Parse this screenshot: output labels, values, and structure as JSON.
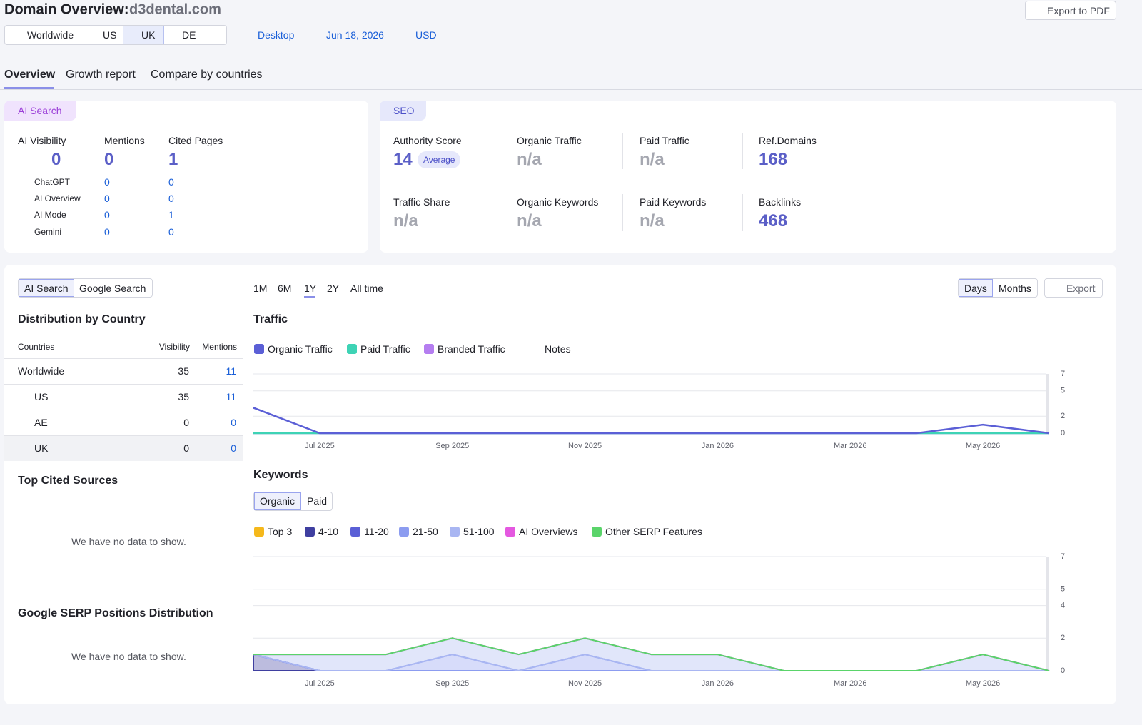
{
  "header": {
    "title": "Domain Overview:",
    "domain": "d3dental.com",
    "export": "Export to PDF"
  },
  "filters": {
    "locations": [
      "Worldwide",
      "US",
      "UK",
      "DE"
    ],
    "device": "Desktop",
    "date": "Jun 18, 2026",
    "currency": "USD"
  },
  "tabs": [
    "Overview",
    "Growth report",
    "Compare by countries"
  ],
  "ai_search": {
    "label": "AI Search",
    "metrics": [
      {
        "name": "AI Visibility",
        "value": 0
      },
      {
        "name": "Mentions",
        "value": 0
      },
      {
        "name": "Cited Pages",
        "value": 1
      }
    ],
    "platforms": [
      {
        "name": "ChatGPT",
        "mentions": 0,
        "cited_pages": 0
      },
      {
        "name": "AI Overview",
        "mentions": 0,
        "cited_pages": 0
      },
      {
        "name": "AI Mode",
        "mentions": 0,
        "cited_pages": 1
      },
      {
        "name": "Gemini",
        "mentions": 0,
        "cited_pages": 0
      }
    ]
  },
  "seo": {
    "label": "SEO",
    "metrics": [
      {
        "name": "Authority Score",
        "value": 14,
        "badge": "Average"
      },
      {
        "name": "Organic Traffic",
        "value": "n/a"
      },
      {
        "name": "Paid Traffic",
        "value": "n/a"
      },
      {
        "name": "Ref.Domains",
        "value": 168
      },
      {
        "name": "Traffic Share",
        "value": "n/a"
      },
      {
        "name": "Organic Keywords",
        "value": "n/a"
      },
      {
        "name": "Paid Keywords",
        "value": "n/a"
      },
      {
        "name": "Backlinks",
        "value": 468
      }
    ]
  },
  "panel": {
    "source_toggle": [
      "AI Search",
      "Google Search"
    ],
    "distribution": {
      "title": "Distribution by Country",
      "columns": [
        "Countries",
        "Visibility",
        "Mentions"
      ],
      "rows": [
        [
          "Worldwide",
          35,
          11
        ],
        [
          "US",
          35,
          11
        ],
        [
          "AE",
          0,
          0
        ],
        [
          "UK",
          0,
          0
        ]
      ]
    },
    "top_cited": {
      "title": "Top Cited Sources",
      "empty": "We have no data to show."
    },
    "serp": {
      "title": "Google SERP Positions Distribution",
      "empty": "We have no data to show."
    },
    "ranges": [
      "1M",
      "6M",
      "1Y",
      "2Y",
      "All time"
    ],
    "granularity": [
      "Days",
      "Months"
    ],
    "export": "Export"
  },
  "traffic": {
    "type": "line",
    "title": "Traffic",
    "notes": "Notes",
    "categories": [
      null,
      "Jul 2025",
      null,
      "Sep 2025",
      null,
      "Nov 2025",
      null,
      "Jan 2026",
      null,
      "Mar 2026",
      null,
      "May 2026",
      null
    ],
    "series": [
      {
        "name": "Organic Traffic",
        "color": "#5b5fd6",
        "values": [
          3,
          0,
          0,
          0,
          0,
          0,
          0,
          0,
          0,
          0,
          0,
          1,
          0
        ]
      },
      {
        "name": "Paid Traffic",
        "color": "#3ed3b5",
        "values": [
          0,
          0,
          0,
          0,
          0,
          0,
          0,
          0,
          0,
          0,
          0,
          0,
          0
        ]
      },
      {
        "name": "Branded Traffic",
        "color": "#b57ef0",
        "values": [
          0,
          0,
          0,
          0,
          0,
          0,
          0,
          0,
          0,
          0,
          0,
          0,
          0
        ]
      }
    ],
    "ylim": [
      0,
      7
    ],
    "yticks": [
      0,
      2,
      5,
      7
    ],
    "grid": true
  },
  "keywords": {
    "type": "area",
    "title": "Keywords",
    "modes": [
      "Organic",
      "Paid"
    ],
    "categories": [
      null,
      "Jul 2025",
      null,
      "Sep 2025",
      null,
      "Nov 2025",
      null,
      "Jan 2026",
      null,
      "Mar 2026",
      null,
      "May 2026",
      null
    ],
    "series": [
      {
        "name": "Top 3",
        "color": "#f5b81b",
        "values": [
          0,
          0,
          0,
          0,
          0,
          0,
          0,
          0,
          0,
          0,
          0,
          0,
          0
        ]
      },
      {
        "name": "4-10",
        "color": "#3f3fa0",
        "values": [
          1,
          0,
          0,
          0,
          0,
          0,
          0,
          0,
          0,
          0,
          0,
          0,
          0
        ]
      },
      {
        "name": "11-20",
        "color": "#5a5fd6",
        "values": [
          0,
          0,
          0,
          0,
          0,
          0,
          0,
          0,
          0,
          0,
          0,
          0,
          0
        ]
      },
      {
        "name": "21-50",
        "color": "#8c9cf0",
        "values": [
          0,
          0,
          0,
          1,
          0,
          1,
          0,
          0,
          0,
          0,
          0,
          0,
          0
        ]
      },
      {
        "name": "51-100",
        "color": "#a9b6f2",
        "values": [
          0,
          1,
          1,
          1,
          1,
          1,
          1,
          1,
          0,
          0,
          0,
          1,
          0
        ]
      },
      {
        "name": "AI Overviews",
        "color": "#e458e0",
        "values": [
          0,
          0,
          0,
          0,
          0,
          0,
          0,
          0,
          0,
          0,
          0,
          0,
          0
        ]
      },
      {
        "name": "Other SERP Features",
        "color": "#5ad46a",
        "values": [
          0,
          0,
          0,
          0,
          0,
          0,
          0,
          0,
          0,
          0,
          0,
          0,
          0
        ]
      }
    ],
    "ylim": [
      0,
      7
    ],
    "yticks": [
      0,
      2,
      4,
      5,
      7
    ],
    "grid": true
  }
}
